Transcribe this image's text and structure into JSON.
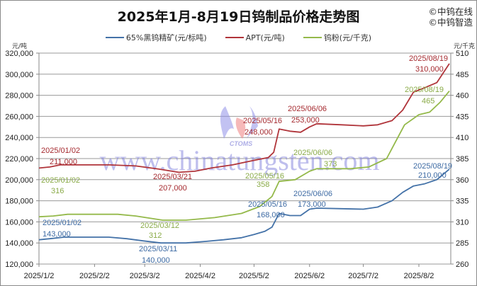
{
  "title": "2025年1月-8月19日钨制品价格走势图",
  "brand": [
    "©中钨在线",
    "©中钨智造"
  ],
  "watermark": {
    "text": "www.chinatungsten.com",
    "logo_text": "CTOMS"
  },
  "legend": [
    {
      "label": "65%黑钨精矿(元/标吨)",
      "color": "#4472a8"
    },
    {
      "label": "APT(元/吨)",
      "color": "#b0343a"
    },
    {
      "label": "钨粉(元/千克)",
      "color": "#94b94a"
    }
  ],
  "axes": {
    "left_unit": "元/吨",
    "right_unit": "元/千克",
    "left_ticks": [
      "320,000",
      "300,000",
      "280,000",
      "260,000",
      "240,000",
      "220,000",
      "200,000",
      "180,000",
      "160,000",
      "140,000",
      "120,000"
    ],
    "right_ticks": [
      "510",
      "485",
      "460",
      "435",
      "410",
      "385",
      "360",
      "335",
      "310",
      "285",
      "260"
    ],
    "x_ticks": [
      "2025/1/2",
      "2025/2/2",
      "2025/3/2",
      "2025/4/2",
      "2025/5/2",
      "2025/6/2",
      "2025/7/2",
      "2025/8/2"
    ]
  },
  "chart_data": {
    "type": "line",
    "title": "2025年1月-8月19日钨制品价格走势图",
    "xlabel": "",
    "ylabel_left": "元/吨",
    "ylabel_right": "元/千克",
    "ylim_left": [
      120000,
      320000
    ],
    "ylim_right": [
      260,
      510
    ],
    "grid": true,
    "legend_position": "top",
    "x_range": [
      "2025/1/2",
      "2025/8/19"
    ],
    "series": [
      {
        "name": "65%黑钨精矿(元/标吨)",
        "axis": "left",
        "color": "#4472a8",
        "points": [
          [
            "2025/1/2",
            143000
          ],
          [
            "2025/1/8",
            144000
          ],
          [
            "2025/1/16",
            145500
          ],
          [
            "2025/2/10",
            145500
          ],
          [
            "2025/2/20",
            144000
          ],
          [
            "2025/3/1",
            142000
          ],
          [
            "2025/3/11",
            140000
          ],
          [
            "2025/3/25",
            140000
          ],
          [
            "2025/4/5",
            141500
          ],
          [
            "2025/4/15",
            143000
          ],
          [
            "2025/4/25",
            145000
          ],
          [
            "2025/5/2",
            148000
          ],
          [
            "2025/5/8",
            151000
          ],
          [
            "2025/5/12",
            155000
          ],
          [
            "2025/5/16",
            168000
          ],
          [
            "2025/5/22",
            166000
          ],
          [
            "2025/5/28",
            166000
          ],
          [
            "2025/6/2",
            172000
          ],
          [
            "2025/6/6",
            173000
          ],
          [
            "2025/6/20",
            172500
          ],
          [
            "2025/7/2",
            172000
          ],
          [
            "2025/7/10",
            174000
          ],
          [
            "2025/7/18",
            180000
          ],
          [
            "2025/7/24",
            188000
          ],
          [
            "2025/7/30",
            194000
          ],
          [
            "2025/8/5",
            196000
          ],
          [
            "2025/8/12",
            200000
          ],
          [
            "2025/8/19",
            210000
          ]
        ],
        "annotations": [
          {
            "date": "2025/01/02",
            "value": "143,000"
          },
          {
            "date": "2025/03/11",
            "value": "140,000"
          },
          {
            "date": "2025/05/16",
            "value": "168,000"
          },
          {
            "date": "2025/06/06",
            "value": "173,000"
          },
          {
            "date": "2025/08/19",
            "value": "210,000"
          }
        ]
      },
      {
        "name": "APT(元/吨)",
        "axis": "left",
        "color": "#b0343a",
        "points": [
          [
            "2025/1/2",
            211000
          ],
          [
            "2025/1/8",
            212000
          ],
          [
            "2025/1/14",
            214000
          ],
          [
            "2025/2/10",
            214000
          ],
          [
            "2025/2/25",
            213000
          ],
          [
            "2025/3/10",
            210000
          ],
          [
            "2025/3/21",
            207000
          ],
          [
            "2025/3/30",
            208000
          ],
          [
            "2025/4/8",
            211000
          ],
          [
            "2025/4/20",
            214000
          ],
          [
            "2025/5/1",
            218000
          ],
          [
            "2025/5/10",
            221000
          ],
          [
            "2025/5/13",
            226000
          ],
          [
            "2025/5/16",
            248000
          ],
          [
            "2025/5/22",
            246000
          ],
          [
            "2025/5/28",
            245000
          ],
          [
            "2025/6/2",
            250000
          ],
          [
            "2025/6/6",
            253000
          ],
          [
            "2025/6/20",
            252000
          ],
          [
            "2025/7/2",
            251000
          ],
          [
            "2025/7/10",
            252000
          ],
          [
            "2025/7/18",
            256000
          ],
          [
            "2025/7/24",
            266000
          ],
          [
            "2025/7/30",
            283000
          ],
          [
            "2025/8/5",
            287000
          ],
          [
            "2025/8/12",
            292000
          ],
          [
            "2025/8/19",
            310000
          ]
        ],
        "annotations": [
          {
            "date": "2025/01/02",
            "value": "211,000"
          },
          {
            "date": "2025/03/21",
            "value": "207,000"
          },
          {
            "date": "2025/05/16",
            "value": "248,000"
          },
          {
            "date": "2025/06/06",
            "value": "253,000"
          },
          {
            "date": "2025/08/19",
            "value": "310,000"
          }
        ]
      },
      {
        "name": "钨粉(元/千克)",
        "axis": "right",
        "color": "#94b94a",
        "points": [
          [
            "2025/1/2",
            316
          ],
          [
            "2025/1/10",
            317
          ],
          [
            "2025/1/18",
            319
          ],
          [
            "2025/2/15",
            319
          ],
          [
            "2025/2/25",
            317
          ],
          [
            "2025/3/12",
            312
          ],
          [
            "2025/3/25",
            312
          ],
          [
            "2025/4/10",
            315
          ],
          [
            "2025/4/25",
            320
          ],
          [
            "2025/5/5",
            328
          ],
          [
            "2025/5/12",
            340
          ],
          [
            "2025/5/16",
            358
          ],
          [
            "2025/5/25",
            360
          ],
          [
            "2025/6/2",
            370
          ],
          [
            "2025/6/6",
            373
          ],
          [
            "2025/6/25",
            373
          ],
          [
            "2025/7/5",
            375
          ],
          [
            "2025/7/15",
            385
          ],
          [
            "2025/7/20",
            405
          ],
          [
            "2025/7/25",
            425
          ],
          [
            "2025/8/2",
            437
          ],
          [
            "2025/8/8",
            440
          ],
          [
            "2025/8/14",
            452
          ],
          [
            "2025/8/19",
            465
          ]
        ],
        "annotations": [
          {
            "date": "2025/01/02",
            "value": "316"
          },
          {
            "date": "2025/03/12",
            "value": "312"
          },
          {
            "date": "2025/05/16",
            "value": "358"
          },
          {
            "date": "2025/06/06",
            "value": "373"
          },
          {
            "date": "2025/08/19",
            "value": "465"
          }
        ]
      }
    ]
  }
}
